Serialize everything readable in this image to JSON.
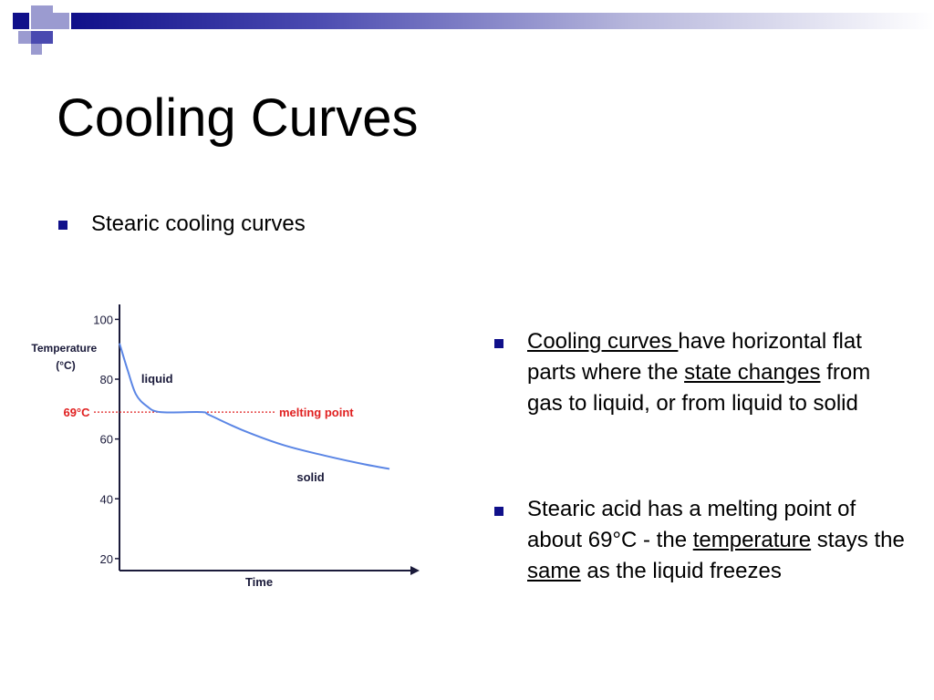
{
  "theme": {
    "accent": "#10108a",
    "square_light": "#9b9bd0",
    "curve": "#5b86e5",
    "melt_line": "#e02020"
  },
  "slide": {
    "title": "Cooling Curves",
    "sub_bullet": "Stearic cooling curves",
    "bullet_icon": "square-bullet-icon"
  },
  "right_bullets": [
    {
      "link1": "Cooling curves ",
      "text1": "have horizontal flat parts where the ",
      "link2": "state changes",
      "text2": " from gas to liquid, or from liquid to solid"
    },
    {
      "text1": "Stearic acid has a melting point of about 69°C - the ",
      "link1": "temperature",
      "text2": " stays the ",
      "link2": "same",
      "text3": " as the liquid freezes"
    }
  ],
  "chart_data": {
    "type": "line",
    "ylabel": "Temperature (°C)",
    "xlabel": "Time",
    "yticks": [
      "100",
      "80",
      "60",
      "40",
      "20"
    ],
    "ytick_values": [
      100,
      80,
      60,
      40,
      20
    ],
    "ylim": [
      16,
      105
    ],
    "xlim": [
      0,
      10
    ],
    "series": [
      {
        "x": [
          0,
          0.3,
          0.6,
          1.0,
          1.5,
          3.0,
          3.3,
          4.5,
          6.0,
          7.5,
          9.0,
          9.9
        ],
        "y": [
          92,
          83,
          75,
          71,
          69,
          69,
          68,
          63,
          58,
          54.5,
          51.5,
          50
        ]
      }
    ],
    "reference_line": {
      "y": 69,
      "label": "melting point",
      "value_label": "69°C"
    },
    "annotations": [
      {
        "text": "liquid",
        "x": 0.8,
        "y": 80
      },
      {
        "text": "solid",
        "x": 6.5,
        "y": 52
      }
    ],
    "grid": false,
    "legend": "none"
  }
}
